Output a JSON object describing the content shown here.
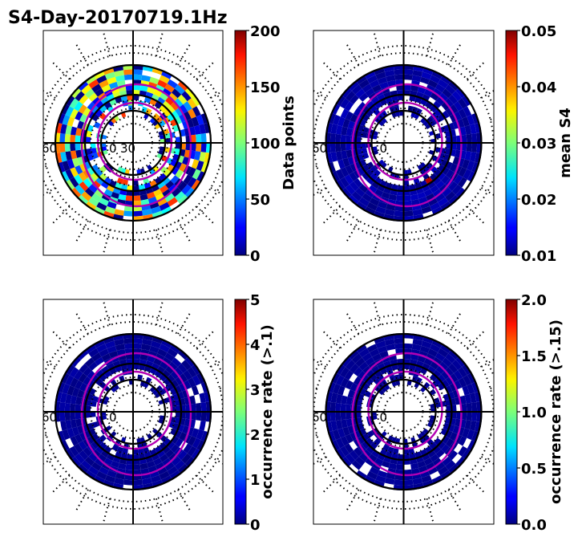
{
  "figure_title": "S4-Day-20170719.1Hz",
  "chart_data": [
    {
      "type": "heatmap",
      "projection": "polar",
      "colormap": "jet",
      "colorbar_label": "Data points",
      "clim": [
        0,
        200
      ],
      "colorbar_ticks": [
        "0",
        "50",
        "100",
        "150",
        "200"
      ],
      "bin_level": 0.35,
      "bin_variation": 0.5,
      "longitude_labels": [
        "60",
        "0",
        "30"
      ]
    },
    {
      "type": "heatmap",
      "projection": "polar",
      "colormap": "jet",
      "colorbar_label": "mean S4",
      "clim": [
        0.01,
        0.05
      ],
      "colorbar_ticks": [
        "0.01",
        "0.02",
        "0.03",
        "0.04",
        "0.05"
      ],
      "bin_level": 0.03,
      "bin_variation": 0.03,
      "hotspot_level": 0.95,
      "longitude_labels": [
        "60",
        "0"
      ]
    },
    {
      "type": "heatmap",
      "projection": "polar",
      "colormap": "jet",
      "colorbar_label": "occurrence rate (>.1)",
      "clim": [
        0,
        5
      ],
      "colorbar_ticks": [
        "0",
        "1",
        "2",
        "3",
        "4",
        "5"
      ],
      "bin_level": 0.02,
      "bin_variation": 0.02,
      "longitude_labels": [
        "60",
        "0"
      ]
    },
    {
      "type": "heatmap",
      "projection": "polar",
      "colormap": "jet",
      "colorbar_label": "occurrence rate (>.15)",
      "clim": [
        0.0,
        2.0
      ],
      "colorbar_ticks": [
        "0.0",
        "0.5",
        "1.0",
        "1.5",
        "2.0"
      ],
      "bin_level": 0.02,
      "bin_variation": 0.01,
      "longitude_labels": [
        "60",
        "0"
      ]
    }
  ]
}
